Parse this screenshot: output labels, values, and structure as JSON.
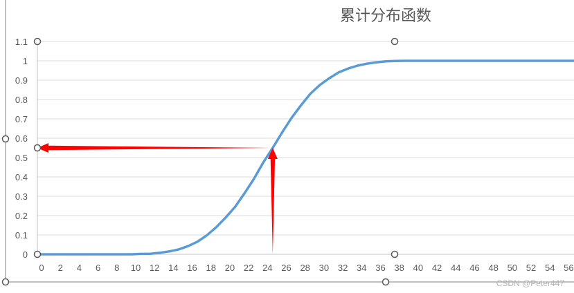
{
  "colors": {
    "series": "#5b9bd5",
    "arrow": "#ff0000",
    "grid": "#d9d9d9",
    "axis": "#bfbfbf",
    "text": "#595959",
    "handle_stroke": "#595959",
    "frame": "#7f7f7f"
  },
  "watermark": "CSDN @Peter447",
  "chart_data": {
    "type": "line",
    "title": "累计分布函数",
    "xlabel": "",
    "ylabel": "",
    "grid": true,
    "legend": "none",
    "xlim": [
      0,
      57
    ],
    "ylim": [
      0,
      1.1
    ],
    "x_ticks": [
      "0",
      "2",
      "4",
      "6",
      "8",
      "10",
      "12",
      "14",
      "16",
      "18",
      "20",
      "22",
      "24",
      "26",
      "28",
      "30",
      "32",
      "34",
      "36",
      "38",
      "40",
      "42",
      "44",
      "46",
      "48",
      "50",
      "52",
      "54",
      "56"
    ],
    "y_ticks": [
      "0",
      "0.1",
      "0.2",
      "0.3",
      "0.4",
      "0.5",
      "0.6",
      "0.7",
      "0.8",
      "0.9",
      "1",
      "1.1"
    ],
    "series": [
      {
        "x": [
          0,
          1,
          2,
          3,
          4,
          5,
          6,
          7,
          8,
          9,
          10,
          11,
          12,
          13,
          14,
          15,
          16,
          17,
          18,
          19,
          20,
          21,
          22,
          23,
          24,
          25,
          26,
          27,
          28,
          29,
          30,
          31,
          32,
          33,
          34,
          35,
          36,
          37,
          38,
          39,
          40,
          41,
          42,
          43,
          44,
          45,
          46,
          47,
          48,
          49,
          50,
          51,
          52,
          53,
          54,
          55,
          56,
          57
        ],
        "y": [
          0,
          0,
          0,
          0,
          0,
          0,
          0,
          0,
          0,
          0,
          0,
          0.002,
          0.003,
          0.008,
          0.015,
          0.025,
          0.042,
          0.065,
          0.098,
          0.14,
          0.19,
          0.245,
          0.315,
          0.39,
          0.475,
          0.55,
          0.63,
          0.705,
          0.77,
          0.83,
          0.875,
          0.91,
          0.94,
          0.96,
          0.975,
          0.985,
          0.992,
          0.997,
          0.999,
          1,
          1,
          1,
          1,
          1,
          1,
          1,
          1,
          1,
          1,
          1,
          1,
          1,
          1,
          1,
          1,
          1,
          1,
          1
        ]
      }
    ],
    "annotations": [
      {
        "type": "arrow",
        "from": [
          25,
          0
        ],
        "to": [
          25,
          0.55
        ]
      },
      {
        "type": "arrow",
        "from": [
          25,
          0.55
        ],
        "to": [
          0,
          0.55
        ]
      }
    ]
  }
}
